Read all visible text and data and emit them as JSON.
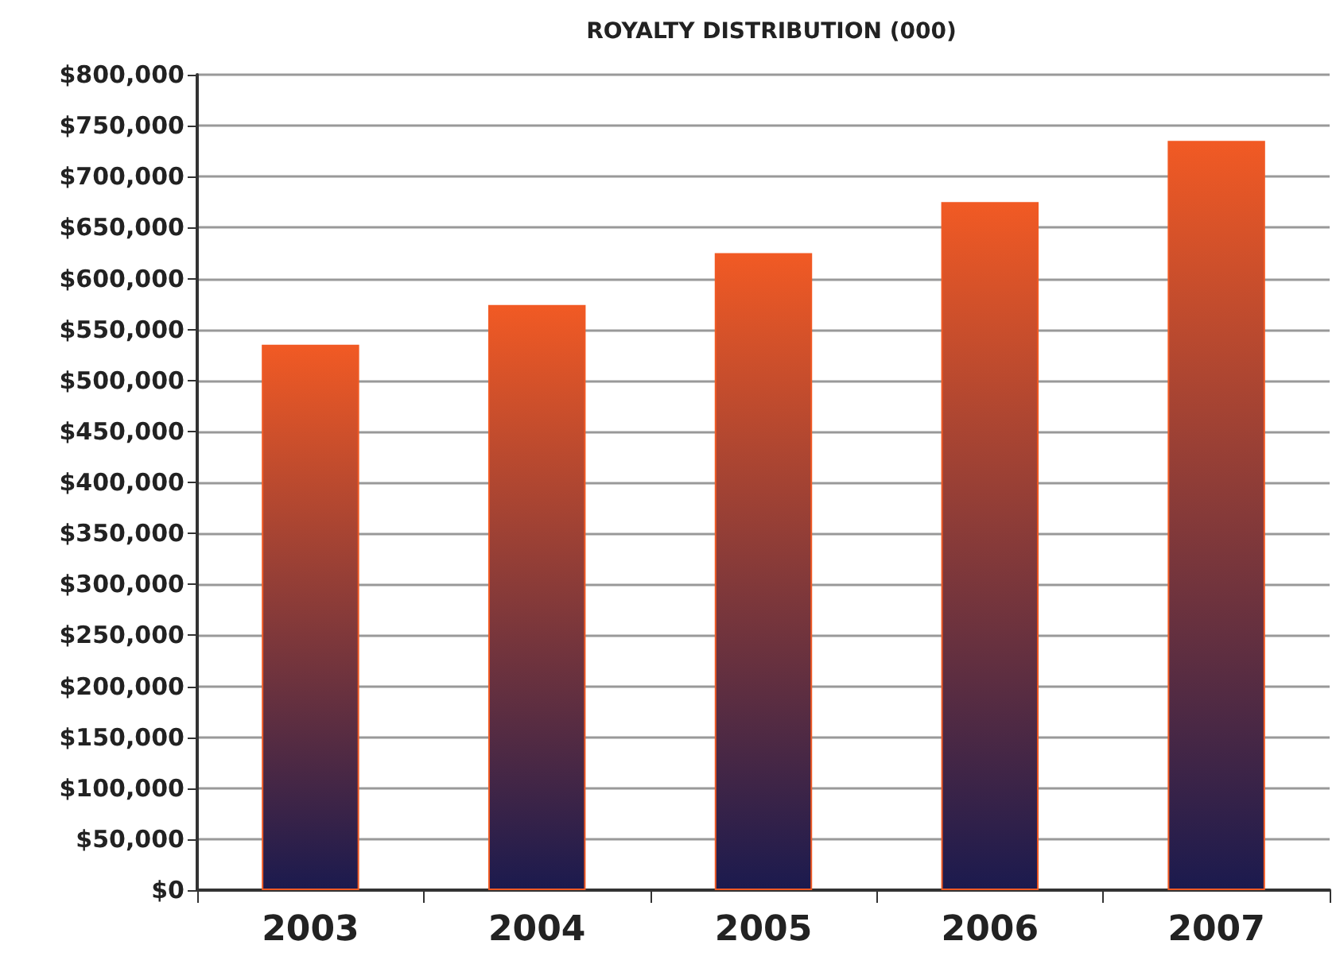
{
  "chart_data": {
    "type": "bar",
    "title": "ROYALTY DISTRIBUTION (000)",
    "categories": [
      "2003",
      "2004",
      "2005",
      "2006",
      "2007"
    ],
    "values": [
      535000,
      574000,
      625000,
      675000,
      735000
    ],
    "color": "#f15a24",
    "ylim": [
      0,
      800000
    ],
    "yticks": [
      {
        "value": 0,
        "label": "$0"
      },
      {
        "value": 50000,
        "label": "$50,000"
      },
      {
        "value": 100000,
        "label": "$100,000"
      },
      {
        "value": 150000,
        "label": "$150,000"
      },
      {
        "value": 200000,
        "label": "$200,000"
      },
      {
        "value": 250000,
        "label": "$250,000"
      },
      {
        "value": 300000,
        "label": "$300,000"
      },
      {
        "value": 350000,
        "label": "$350,000"
      },
      {
        "value": 400000,
        "label": "$400,000"
      },
      {
        "value": 450000,
        "label": "$450,000"
      },
      {
        "value": 500000,
        "label": "$500,000"
      },
      {
        "value": 550000,
        "label": "$550,000"
      },
      {
        "value": 600000,
        "label": "$600,000"
      },
      {
        "value": 650000,
        "label": "$650,000"
      },
      {
        "value": 700000,
        "label": "$700,000"
      },
      {
        "value": 750000,
        "label": "$750,000"
      },
      {
        "value": 800000,
        "label": "$800,000"
      }
    ],
    "grid": "y"
  }
}
